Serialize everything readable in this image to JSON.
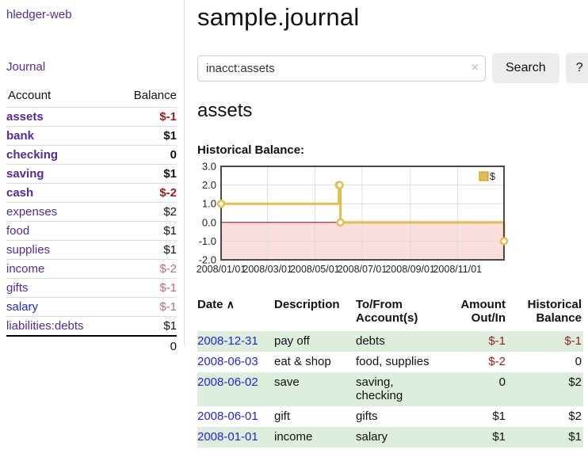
{
  "colors": {
    "link_purple": "#552a9e",
    "link_blue": "#2424e0",
    "negative_strong": "#9e1b1b",
    "negative_muted": "#c46a6a",
    "row_green": "#ddeedd",
    "chart_gold": "#e5bd4c",
    "button_gray": "#ececec"
  },
  "sidebar": {
    "brand": "hledger-web",
    "journal_label": "Journal",
    "accounts": {
      "header_account": "Account",
      "header_balance": "Balance",
      "rows": [
        {
          "name": "assets",
          "balance": "$-1",
          "depth": 1,
          "bold": true,
          "negative": "strong"
        },
        {
          "name": "bank",
          "balance": "$1",
          "depth": 2,
          "bold": true
        },
        {
          "name": "checking",
          "balance": "0",
          "depth": 3,
          "bold": true
        },
        {
          "name": "saving",
          "balance": "$1",
          "depth": 3,
          "bold": true
        },
        {
          "name": "cash",
          "balance": "$-2",
          "depth": 2,
          "bold": true,
          "negative": "strong"
        },
        {
          "name": "expenses",
          "balance": "$2",
          "depth": 1
        },
        {
          "name": "food",
          "balance": "$1",
          "depth": 2
        },
        {
          "name": "supplies",
          "balance": "$1",
          "depth": 2
        },
        {
          "name": "income",
          "balance": "$-2",
          "depth": 1,
          "negative": "muted"
        },
        {
          "name": "gifts",
          "balance": "$-1",
          "depth": 2,
          "negative": "muted"
        },
        {
          "name": "salary",
          "balance": "$-1",
          "depth": 2,
          "negative": "muted",
          "link_style": "blue"
        },
        {
          "name": "liabilities:debts",
          "balance": "$1",
          "depth": 1
        }
      ],
      "total": "0"
    }
  },
  "main": {
    "title": "sample.journal",
    "search": {
      "value": "inacct:assets",
      "clear_icon": "×",
      "button_label": "Search",
      "help_label": "?"
    },
    "account_heading": "assets",
    "chart_label": "Historical Balance:"
  },
  "chart_data": {
    "type": "line",
    "step": true,
    "title": "Historical Balance:",
    "series": [
      {
        "name": "$",
        "color": "#e5bd4c",
        "points": [
          [
            "2008-01-01",
            1
          ],
          [
            "2008-06-01",
            2
          ],
          [
            "2008-06-02",
            2
          ],
          [
            "2008-06-03",
            0
          ],
          [
            "2008-12-31",
            -1
          ]
        ]
      }
    ],
    "x_ticks": [
      "2008/01/01",
      "2008/03/01",
      "2008/05/01",
      "2008/07/01",
      "2008/09/01",
      "2008/11/01"
    ],
    "y_ticks": [
      3.0,
      2.0,
      1.0,
      0.0,
      -1.0,
      -2.0
    ],
    "ylim": [
      -2,
      3
    ],
    "xlim_dates": [
      "2008-01-01",
      "2008-12-31"
    ],
    "grid": true,
    "negative_region_color": "#fbdfdf",
    "zero_line_color": "#9b0000",
    "legend": {
      "label": "$",
      "position": "top-right"
    }
  },
  "transactions": {
    "headers": {
      "date": "Date",
      "sort_icon": "∧",
      "description": "Description",
      "accounts": "To/From Account(s)",
      "amount": "Amount Out/In",
      "balance": "Historical Balance"
    },
    "rows": [
      {
        "date": "2008-12-31",
        "description": "pay off",
        "accounts": "debts",
        "amount": "$-1",
        "amount_negative": true,
        "balance": "$-1",
        "balance_negative": true
      },
      {
        "date": "2008-06-03",
        "description": "eat & shop",
        "accounts": "food, supplies",
        "amount": "$-2",
        "amount_negative": true,
        "balance": "0",
        "balance_negative": false
      },
      {
        "date": "2008-06-02",
        "description": "save",
        "accounts": "saving, checking",
        "amount": "0",
        "amount_negative": false,
        "balance": "$2",
        "balance_negative": false
      },
      {
        "date": "2008-06-01",
        "description": "gift",
        "accounts": "gifts",
        "amount": "$1",
        "amount_negative": false,
        "balance": "$2",
        "balance_negative": false
      },
      {
        "date": "2008-01-01",
        "description": "income",
        "accounts": "salary",
        "amount": "$1",
        "amount_negative": false,
        "balance": "$1",
        "balance_negative": false
      }
    ]
  }
}
